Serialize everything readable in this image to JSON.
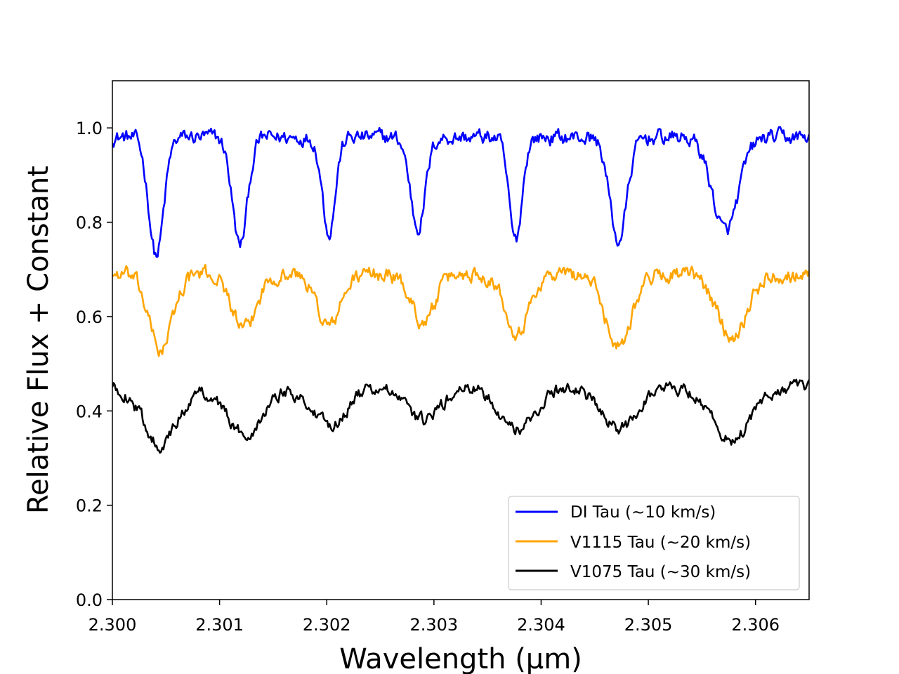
{
  "chart_data": {
    "type": "line",
    "title": "",
    "xlabel": "Wavelength (μm)",
    "ylabel": "Relative Flux + Constant",
    "xlim": [
      2.3,
      2.3065
    ],
    "ylim": [
      0.0,
      1.1
    ],
    "xticks": [
      2.3,
      2.301,
      2.302,
      2.303,
      2.304,
      2.305,
      2.306
    ],
    "xtick_labels": [
      "2.300",
      "2.301",
      "2.302",
      "2.303",
      "2.304",
      "2.305",
      "2.306"
    ],
    "yticks": [
      0.0,
      0.2,
      0.4,
      0.6,
      0.8,
      1.0
    ],
    "ytick_labels": [
      "0.0",
      "0.2",
      "0.4",
      "0.6",
      "0.8",
      "1.0"
    ],
    "grid": false,
    "legend_position": "lower-right",
    "series": [
      {
        "name": "DI Tau (~10 km/s)",
        "color": "#0000ff",
        "baseline": 0.98,
        "noise": 0.012,
        "lines": [
          {
            "center": 2.30041,
            "depth": 0.25,
            "width": 7e-05
          },
          {
            "center": 2.30119,
            "depth": 0.23,
            "width": 7e-05
          },
          {
            "center": 2.30202,
            "depth": 0.2,
            "width": 6e-05
          },
          {
            "center": 2.30285,
            "depth": 0.19,
            "width": 7e-05
          },
          {
            "center": 2.30376,
            "depth": 0.22,
            "width": 6e-05
          },
          {
            "center": 2.30472,
            "depth": 0.22,
            "width": 8e-05
          },
          {
            "center": 2.30572,
            "depth": 0.2,
            "width": 0.00012
          }
        ]
      },
      {
        "name": "V1115 Tau (~20 km/s)",
        "color": "#ffa500",
        "baseline": 0.69,
        "noise": 0.012,
        "lines": [
          {
            "center": 2.30045,
            "depth": 0.16,
            "width": 0.00011
          },
          {
            "center": 2.30123,
            "depth": 0.12,
            "width": 0.00011
          },
          {
            "center": 2.30202,
            "depth": 0.11,
            "width": 0.00011
          },
          {
            "center": 2.3029,
            "depth": 0.1,
            "width": 0.00011
          },
          {
            "center": 2.30378,
            "depth": 0.12,
            "width": 0.00011
          },
          {
            "center": 2.30472,
            "depth": 0.15,
            "width": 0.00012
          },
          {
            "center": 2.30578,
            "depth": 0.13,
            "width": 0.00014
          }
        ]
      },
      {
        "name": "V1075 Tau (~30 km/s)",
        "color": "#000000",
        "baseline": 0.45,
        "noise": 0.01,
        "lines": [
          {
            "center": 2.30045,
            "depth": 0.12,
            "width": 0.00016
          },
          {
            "center": 2.30123,
            "depth": 0.1,
            "width": 0.00016
          },
          {
            "center": 2.30202,
            "depth": 0.08,
            "width": 0.00016
          },
          {
            "center": 2.3029,
            "depth": 0.07,
            "width": 0.00016
          },
          {
            "center": 2.30378,
            "depth": 0.09,
            "width": 0.00016
          },
          {
            "center": 2.30472,
            "depth": 0.09,
            "width": 0.00016
          },
          {
            "center": 2.30578,
            "depth": 0.11,
            "width": 0.00018
          }
        ]
      }
    ]
  }
}
